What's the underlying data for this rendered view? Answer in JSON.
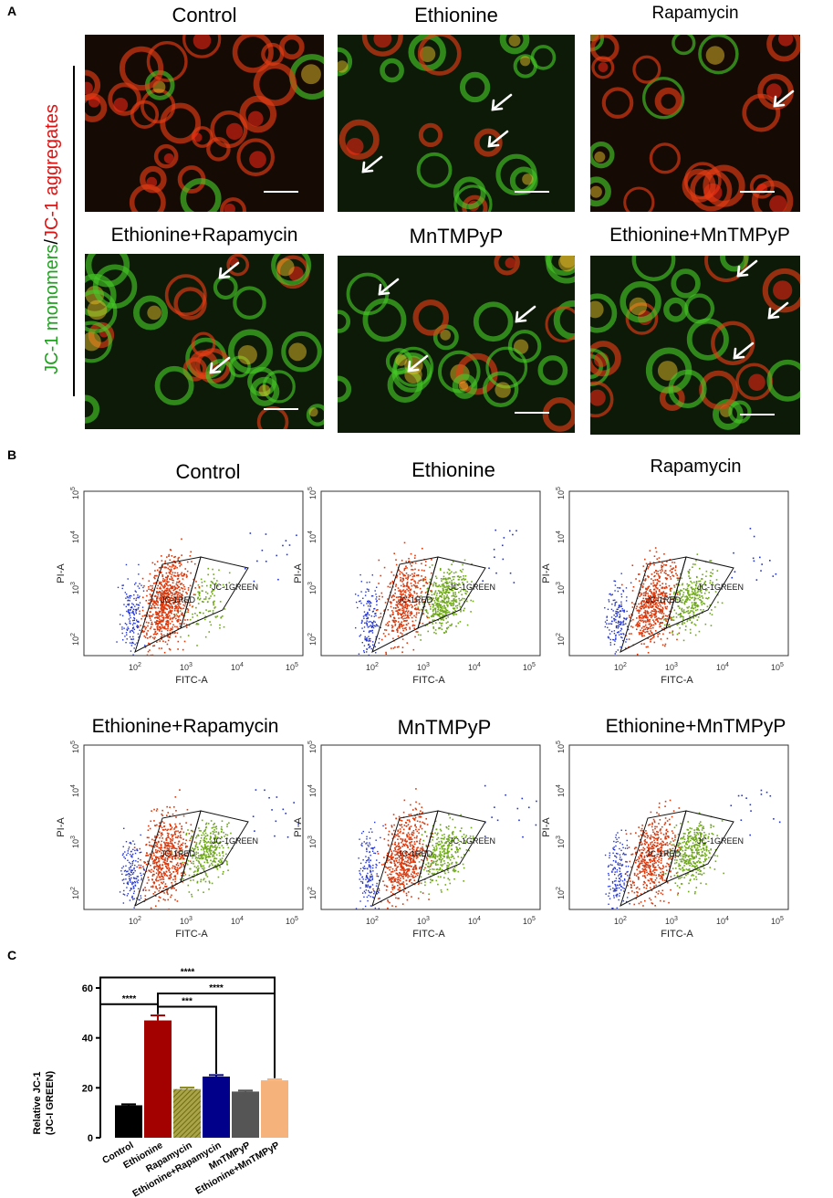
{
  "figure": {
    "panel_a_label": "A",
    "panel_b_label": "B",
    "panel_c_label": "C",
    "y_side_label": {
      "green_part": "JC-1 monomers",
      "slash": "/",
      "red_part": "JC-1 aggregates",
      "green_color": "#1fa31f",
      "red_color": "#e01010"
    },
    "micrographs": [
      {
        "title": "Control"
      },
      {
        "title": "Ethionine"
      },
      {
        "title": "Rapamycin"
      },
      {
        "title": "Ethionine+Rapamycin"
      },
      {
        "title": "MnTMPyP"
      },
      {
        "title": "Ethionine+MnTMPyP"
      }
    ],
    "flow_plots": [
      {
        "title": "Control"
      },
      {
        "title": "Ethionine"
      },
      {
        "title": "Rapamycin"
      },
      {
        "title": "Ethionine+Rapamycin"
      },
      {
        "title": "MnTMPyP"
      },
      {
        "title": "Ethionine+MnTMPyP"
      }
    ],
    "flow_axes": {
      "xlabel": "FITC-A",
      "ylabel": "PI-A",
      "x_ticks": [
        "10^2",
        "10^3",
        "10^4",
        "10^5"
      ],
      "y_ticks": [
        "10^2",
        "10^3",
        "10^4",
        "10^5"
      ],
      "gate_red_label": "JC-1RED",
      "gate_green_label": "JC-1GREEN",
      "red_color": "#d83a0e",
      "green_color": "#6fa81a",
      "blue_color": "#2233cc"
    }
  },
  "chart_data": {
    "type": "bar",
    "title": "",
    "xlabel": "",
    "ylabel": "Relative JC-1\n(JC-I GREEN)",
    "ylabel_line1": "Relative JC-1",
    "ylabel_line2": "(JC-I GREEN)",
    "ylim": [
      0,
      60
    ],
    "yticks": [
      0,
      20,
      40,
      60
    ],
    "grid": false,
    "categories": [
      "Control",
      "Ethionine",
      "Rapamycin",
      "Ethionine+Rapamycin",
      "MnTMPyP",
      "Ethionine+MnTMPyP"
    ],
    "values": [
      13,
      47,
      19.5,
      24.5,
      18.5,
      23
    ],
    "errors": [
      0.4,
      2,
      0.6,
      0.6,
      0.4,
      0.4
    ],
    "colors": [
      "#000000",
      "#a30000",
      "#8b8a1c",
      "#00008b",
      "#555555",
      "#f5b27a"
    ],
    "hatched": [
      false,
      false,
      true,
      false,
      false,
      false
    ],
    "significance": [
      {
        "from": 0,
        "to": 1,
        "label": "****"
      },
      {
        "from": 1,
        "to": 3,
        "label": "***"
      },
      {
        "from": 1,
        "to": 5,
        "label": "****"
      },
      {
        "from": 0,
        "to": 5,
        "label": "****"
      }
    ]
  }
}
